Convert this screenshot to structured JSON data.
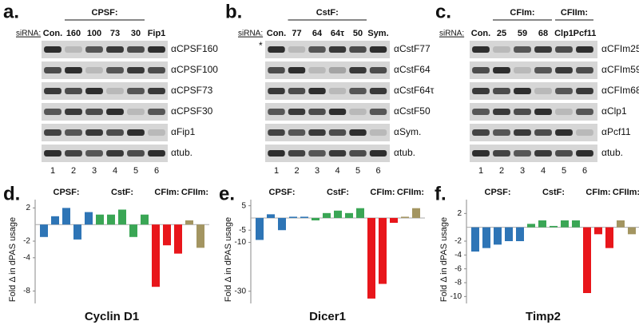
{
  "blots": [
    {
      "label": "a.",
      "sirna": "siRNA:",
      "header": [
        "CPSF:"
      ],
      "lanes": [
        "Con.",
        "160",
        "100",
        "73",
        "30",
        "Fip1"
      ],
      "antibodies": [
        "αCPSF160",
        "αCPSF100",
        "αCPSF73",
        "αCPSF30",
        "αFip1",
        "αtub."
      ],
      "lane_numbers": [
        "1",
        "2",
        "3",
        "4",
        "5",
        "6"
      ]
    },
    {
      "label": "b.",
      "sirna": "siRNA:",
      "header": [
        "CstF:"
      ],
      "marker": "*",
      "lanes": [
        "Con.",
        "77",
        "64",
        "64τ",
        "50",
        "Sym."
      ],
      "antibodies": [
        "αCstF77",
        "αCstF64",
        "αCstF64τ",
        "αCstF50",
        "αSym.",
        "αtub."
      ],
      "lane_numbers": [
        "1",
        "2",
        "3",
        "4",
        "5",
        "6"
      ]
    },
    {
      "label": "c.",
      "sirna": "siRNA:",
      "header": [
        "CFIm:",
        "CFIIm:"
      ],
      "lanes": [
        "Con.",
        "25",
        "59",
        "68",
        "Clp1",
        "Pcf11"
      ],
      "antibodies": [
        "αCFIm25",
        "αCFIm59",
        "αCFIm68",
        "αClp1",
        "αPcf11",
        "αtub."
      ],
      "lane_numbers": [
        "1",
        "2",
        "3",
        "4",
        "5",
        "6"
      ]
    }
  ],
  "chart_data": [
    {
      "type": "bar",
      "label": "d.",
      "title": "Cyclin D1",
      "ylabel": "Fold Δ in dPAS usage",
      "ylim": [
        -9.5,
        3
      ],
      "yticks": [
        2,
        -2,
        -4,
        -8
      ],
      "series": [
        {
          "name": "CPSF:",
          "color": "#2e75b6",
          "values": [
            -1.5,
            1,
            2,
            -1.8,
            1.5
          ]
        },
        {
          "name": "CstF:",
          "color": "#3aa655",
          "values": [
            1.2,
            1.2,
            1.8,
            -1.5,
            1.2
          ]
        },
        {
          "name": "CFIm:",
          "color": "#e8161b",
          "values": [
            -7.5,
            -2.5,
            -3.5
          ]
        },
        {
          "name": "CFIIm:",
          "color": "#a39561",
          "values": [
            0.5,
            -2.8
          ]
        }
      ]
    },
    {
      "type": "bar",
      "label": "e.",
      "title": "Dicer1",
      "ylabel": "Fold Δ in dPAS usage",
      "ylim": [
        -35,
        7.5
      ],
      "yticks": [
        5,
        -5,
        -10,
        -30
      ],
      "series": [
        {
          "name": "CPSF:",
          "color": "#2e75b6",
          "values": [
            -9,
            1.5,
            -5,
            0.5,
            0.5
          ]
        },
        {
          "name": "CstF:",
          "color": "#3aa655",
          "values": [
            -1,
            2,
            3,
            2,
            4
          ]
        },
        {
          "name": "CFIm:",
          "color": "#e8161b",
          "values": [
            -33,
            -27,
            -2
          ]
        },
        {
          "name": "CFIIm:",
          "color": "#a39561",
          "values": [
            0.5,
            4
          ]
        }
      ]
    },
    {
      "type": "bar",
      "label": "f.",
      "title": "Timp2",
      "ylabel": "Fold Δ in dPAS usage",
      "ylim": [
        -11,
        4
      ],
      "yticks": [
        2,
        -2,
        -4,
        -6,
        -8,
        -10
      ],
      "series": [
        {
          "name": "CPSF:",
          "color": "#2e75b6",
          "values": [
            -3.5,
            -3,
            -2.5,
            -2,
            -2
          ]
        },
        {
          "name": "CstF:",
          "color": "#3aa655",
          "values": [
            0.5,
            1,
            0.2,
            1,
            1
          ]
        },
        {
          "name": "CFIm:",
          "color": "#e8161b",
          "values": [
            -9.5,
            -1,
            -3
          ]
        },
        {
          "name": "CFIIm:",
          "color": "#a39561",
          "values": [
            1,
            -1
          ]
        }
      ]
    }
  ]
}
